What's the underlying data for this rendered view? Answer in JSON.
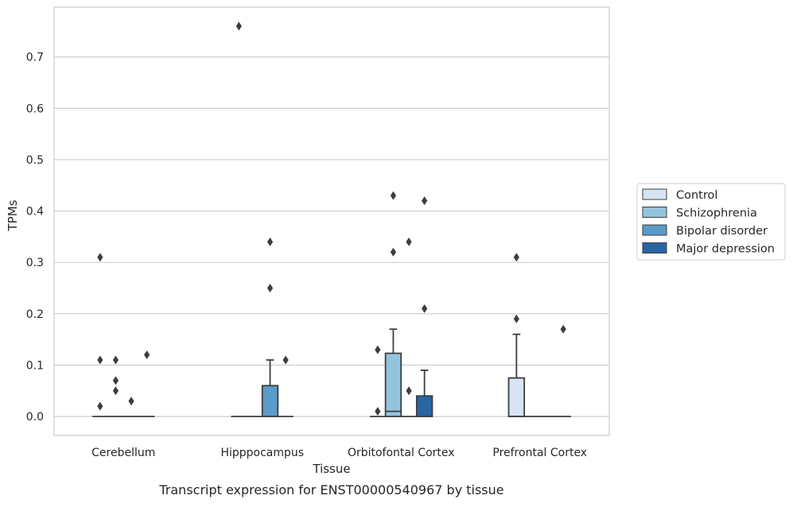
{
  "caption": "Transcript expression for ENST00000540967 by tissue",
  "chart_data": {
    "type": "box",
    "title": "",
    "xlabel": "Tissue",
    "ylabel": "TPMs",
    "ylim": [
      -0.037,
      0.797
    ],
    "yticks": [
      "0.0",
      "0.1",
      "0.2",
      "0.3",
      "0.4",
      "0.5",
      "0.6",
      "0.7"
    ],
    "categories": [
      "Cerebellum",
      "Hipppocampus",
      "Orbitofontal Cortex",
      "Prefrontal Cortex"
    ],
    "grid": "horizontal",
    "legend_position": "right",
    "series": [
      {
        "name": "Control",
        "color": "#d6e5f4",
        "boxes": [
          {
            "q1": 0,
            "median": 0,
            "q3": 0,
            "whisker_low": 0,
            "whisker_high": 0,
            "outliers": [
              0.31,
              0.11,
              0.02
            ]
          },
          {
            "q1": 0,
            "median": 0,
            "q3": 0,
            "whisker_low": 0,
            "whisker_high": 0,
            "outliers": [
              0.76
            ]
          },
          {
            "q1": 0,
            "median": 0,
            "q3": 0,
            "whisker_low": 0,
            "whisker_high": 0,
            "outliers": [
              0.13,
              0.01
            ]
          },
          {
            "q1": 0,
            "median": 0,
            "q3": 0.075,
            "whisker_low": 0,
            "whisker_high": 0.16,
            "outliers": [
              0.31,
              0.19
            ]
          }
        ]
      },
      {
        "name": "Schizophrenia",
        "color": "#93c4de",
        "boxes": [
          {
            "q1": 0,
            "median": 0,
            "q3": 0,
            "whisker_low": 0,
            "whisker_high": 0,
            "outliers": [
              0.11,
              0.07,
              0.05
            ]
          },
          {
            "q1": 0,
            "median": 0,
            "q3": 0,
            "whisker_low": 0,
            "whisker_high": 0,
            "outliers": []
          },
          {
            "q1": 0,
            "median": 0.01,
            "q3": 0.123,
            "whisker_low": 0,
            "whisker_high": 0.17,
            "outliers": [
              0.43,
              0.32
            ]
          },
          {
            "q1": 0,
            "median": 0,
            "q3": 0,
            "whisker_low": 0,
            "whisker_high": 0,
            "outliers": []
          }
        ]
      },
      {
        "name": "Bipolar disorder",
        "color": "#5a9bc9",
        "boxes": [
          {
            "q1": 0,
            "median": 0,
            "q3": 0,
            "whisker_low": 0,
            "whisker_high": 0,
            "outliers": [
              0.03
            ]
          },
          {
            "q1": 0,
            "median": 0,
            "q3": 0.06,
            "whisker_low": 0,
            "whisker_high": 0.11,
            "outliers": [
              0.34,
              0.25
            ]
          },
          {
            "q1": 0,
            "median": 0,
            "q3": 0,
            "whisker_low": 0,
            "whisker_high": 0,
            "outliers": [
              0.34,
              0.05
            ]
          },
          {
            "q1": 0,
            "median": 0,
            "q3": 0,
            "whisker_low": 0,
            "whisker_high": 0,
            "outliers": []
          }
        ]
      },
      {
        "name": "Major depression",
        "color": "#2865a3",
        "boxes": [
          {
            "q1": 0,
            "median": 0,
            "q3": 0,
            "whisker_low": 0,
            "whisker_high": 0,
            "outliers": [
              0.12
            ]
          },
          {
            "q1": 0,
            "median": 0,
            "q3": 0,
            "whisker_low": 0,
            "whisker_high": 0,
            "outliers": [
              0.11
            ]
          },
          {
            "q1": 0,
            "median": 0,
            "q3": 0.04,
            "whisker_low": 0,
            "whisker_high": 0.09,
            "outliers": [
              0.42,
              0.21
            ]
          },
          {
            "q1": 0,
            "median": 0,
            "q3": 0,
            "whisker_low": 0,
            "whisker_high": 0,
            "outliers": [
              0.17
            ]
          }
        ]
      }
    ]
  }
}
